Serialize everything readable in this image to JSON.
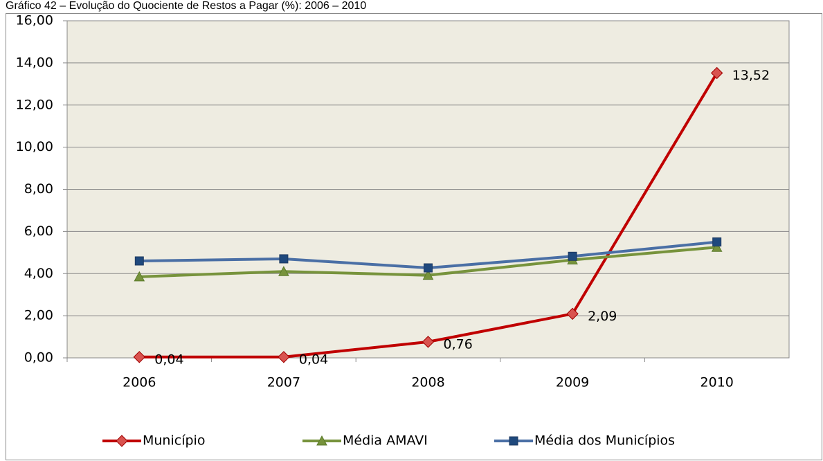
{
  "chart_data": {
    "type": "line",
    "title": "Gráfico 42 – Evolução do Quociente de Restos a Pagar (%): 2006 – 2010",
    "categories": [
      "2006",
      "2007",
      "2008",
      "2009",
      "2010"
    ],
    "series": [
      {
        "name": "Município",
        "color": "#c00000",
        "marker": "diamond",
        "values": [
          0.04,
          0.04,
          0.76,
          2.09,
          13.52
        ],
        "value_labels": [
          "0,04",
          "0,04",
          "0,76",
          "2,09",
          "13,52"
        ]
      },
      {
        "name": "Média AMAVI",
        "color": "#77933c",
        "marker": "triangle",
        "values": [
          3.85,
          4.1,
          3.92,
          4.65,
          5.25
        ]
      },
      {
        "name": "Média dos Municípios",
        "color": "#4a6fa5",
        "marker": "square",
        "values": [
          4.6,
          4.7,
          4.27,
          4.82,
          5.5
        ]
      }
    ],
    "ylim": [
      0,
      16
    ],
    "yticks": [
      {
        "value": 0,
        "label": "0,00"
      },
      {
        "value": 2,
        "label": "2,00"
      },
      {
        "value": 4,
        "label": "4,00"
      },
      {
        "value": 6,
        "label": "6,00"
      },
      {
        "value": 8,
        "label": "8,00"
      },
      {
        "value": 10,
        "label": "10,00"
      },
      {
        "value": 12,
        "label": "12,00"
      },
      {
        "value": 14,
        "label": "14,00"
      },
      {
        "value": 16,
        "label": "16,00"
      }
    ],
    "grid": true,
    "legend": "bottom",
    "plot_background": "#eeece1"
  }
}
